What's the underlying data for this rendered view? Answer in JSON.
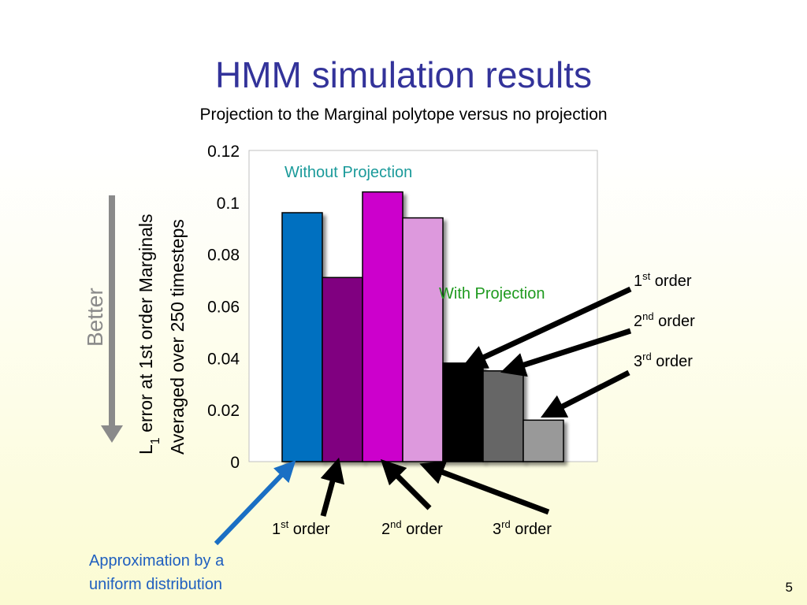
{
  "slide": {
    "title": "HMM simulation results",
    "subtitle": "Projection to the Marginal polytope versus no projection",
    "page_number": "5"
  },
  "better_label": "Better",
  "colors": {
    "title": "#33339a",
    "without_projection_label": "#1a9a9a",
    "with_projection_label": "#1f9a1f",
    "approx_label": "#1f5fbf",
    "approx_arrow": "#1a6fc4",
    "better_arrow": "#8a8a8a"
  },
  "chart_data": {
    "type": "bar",
    "ylabel_line1": "L1 error at 1st order Marginals",
    "ylabel_line1_main": "L",
    "ylabel_line1_sub": "1",
    "ylabel_line1_rest": " error at 1st order Marginals",
    "ylabel_line2": "Averaged over 250 timesteps",
    "ylim": [
      0,
      0.12
    ],
    "yticks": [
      "0",
      "0.02",
      "0.04",
      "0.06",
      "0.08",
      "0.1",
      "0.12"
    ],
    "ytick_values": [
      0,
      0.02,
      0.04,
      0.06,
      0.08,
      0.1,
      0.12
    ],
    "grid": false,
    "bars": [
      {
        "value": 0.096,
        "color": "#0070c0",
        "group": "uniform"
      },
      {
        "value": 0.071,
        "color": "#800080",
        "group": "without",
        "order": "1st"
      },
      {
        "value": 0.104,
        "color": "#cc00cc",
        "group": "without",
        "order": "2nd"
      },
      {
        "value": 0.094,
        "color": "#dd99dd",
        "group": "without",
        "order": "3rd"
      },
      {
        "value": 0.038,
        "color": "#000000",
        "group": "with",
        "order": "1st"
      },
      {
        "value": 0.035,
        "color": "#666666",
        "group": "with",
        "order": "2nd"
      },
      {
        "value": 0.016,
        "color": "#999999",
        "group": "with",
        "order": "3rd"
      }
    ],
    "annotations": {
      "without_projection": "Without Projection",
      "with_projection": "With Projection",
      "approximation_line1": "Approximation by a",
      "approximation_line2": "uniform distribution"
    },
    "order_labels": [
      {
        "num": "1",
        "sup": "st",
        "word": " order"
      },
      {
        "num": "2",
        "sup": "nd",
        "word": " order"
      },
      {
        "num": "3",
        "sup": "rd",
        "word": " order"
      }
    ]
  }
}
